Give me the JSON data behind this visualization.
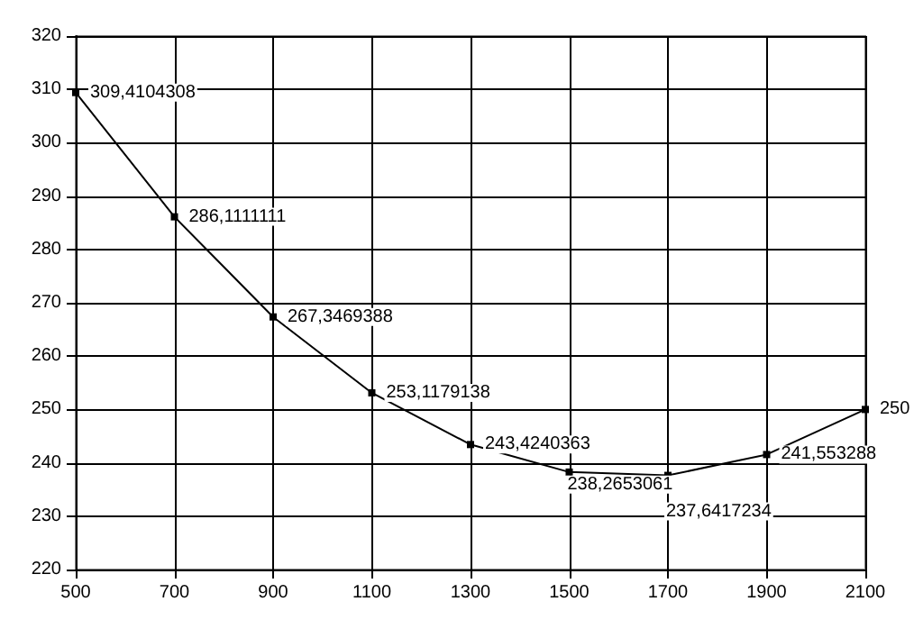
{
  "chart_data": {
    "type": "line",
    "x": [
      500,
      700,
      900,
      1100,
      1300,
      1500,
      1700,
      1900,
      2100
    ],
    "series": [
      {
        "color": "#000000",
        "values": [
          309.4104308,
          286.1111111,
          267.3469388,
          253.1179138,
          243.4240363,
          238.2653061,
          237.6417234,
          241.553288,
          250
        ],
        "value_labels": [
          "309,4104308",
          "286,1111111",
          "267,3469388",
          "253,1179138",
          "243,4240363",
          "238,2653061",
          "237,6417234",
          "241,553288",
          "250"
        ]
      }
    ],
    "xlim": [
      500,
      2100
    ],
    "xticks": [
      500,
      700,
      900,
      1100,
      1300,
      1500,
      1700,
      1900,
      2100
    ],
    "ylim": [
      220,
      320
    ],
    "yticks": [
      220,
      230,
      240,
      250,
      260,
      270,
      280,
      290,
      300,
      310,
      320
    ],
    "grid": true,
    "marker": "square",
    "line_style": "solid"
  }
}
